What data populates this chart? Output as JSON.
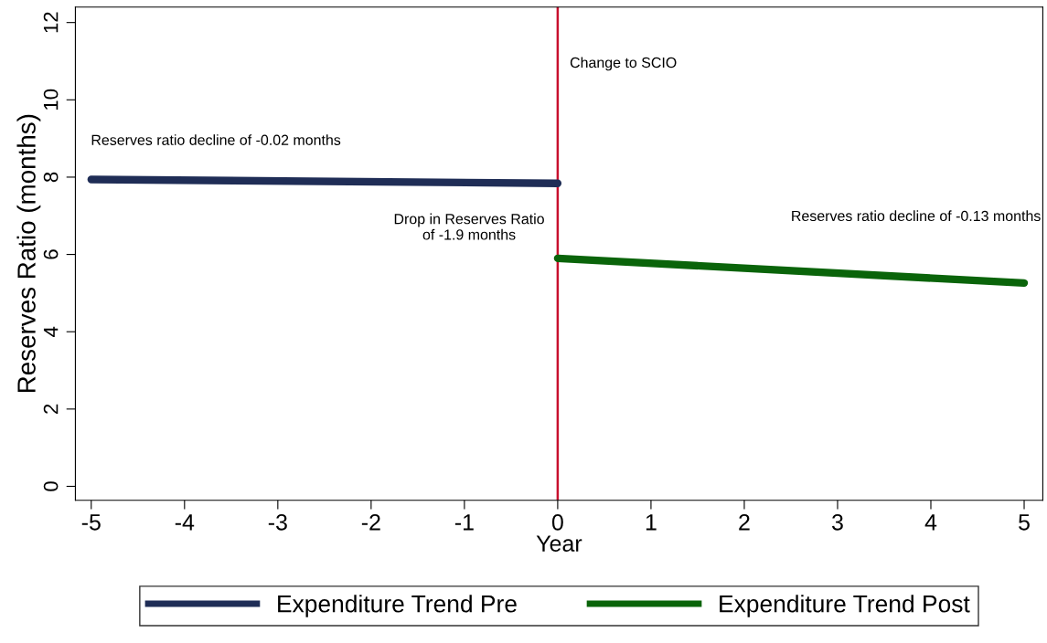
{
  "chart_data": {
    "type": "line",
    "xlabel": "Year",
    "ylabel": "Reserves Ratio (months)",
    "xlim": [
      -5.17,
      5.2
    ],
    "ylim": [
      -0.36,
      12.4
    ],
    "xticks": [
      -5,
      -4,
      -3,
      -2,
      -1,
      0,
      1,
      2,
      3,
      4,
      5
    ],
    "yticks": [
      0,
      2,
      4,
      6,
      8,
      10,
      12
    ],
    "series": [
      {
        "name": "Expenditure Trend Pre",
        "color": "#1f2d56",
        "x": [
          -5,
          0
        ],
        "values": [
          7.94,
          7.84
        ]
      },
      {
        "name": "Expenditure Trend Post",
        "color": "#0a640a",
        "x": [
          0,
          5
        ],
        "values": [
          5.9,
          5.26
        ]
      }
    ],
    "ref_lines": [
      {
        "axis": "x",
        "value": 0,
        "color": "#c8102e"
      }
    ],
    "annotations": [
      "Reserves ratio decline of -0.02 months",
      "Change to SCIO",
      "Drop in Reserves Ratio\nof -1.9 months",
      "Reserves ratio decline of -0.13 months"
    ],
    "grid": false,
    "legend": "bottom",
    "marker": "none",
    "line_style": "solid"
  }
}
